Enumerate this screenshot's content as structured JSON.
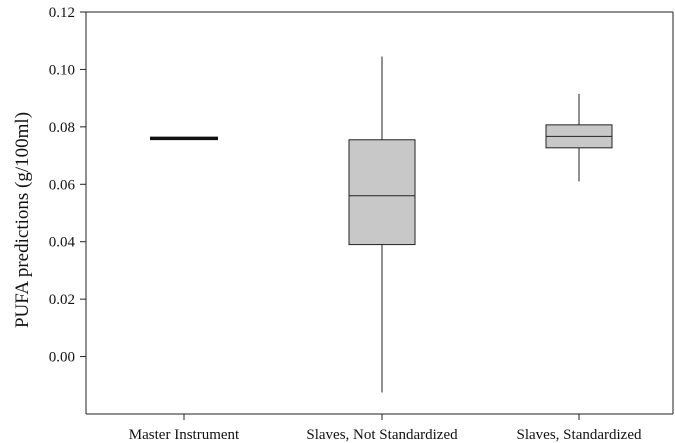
{
  "chart_data": {
    "type": "box",
    "ylabel": "PUFA predictions (g/100ml)",
    "xlabel": "",
    "ylim": [
      -0.02,
      0.12
    ],
    "yticks": [
      0.0,
      0.02,
      0.04,
      0.06,
      0.08,
      0.1,
      0.12
    ],
    "ytick_labels": [
      "0.00",
      "0.02",
      "0.04",
      "0.06",
      "0.08",
      "0.10",
      "0.12"
    ],
    "grid": false,
    "categories": [
      "Master Instrument",
      "Slaves, Not Standardized",
      "Slaves, Standardized"
    ],
    "boxes": [
      {
        "category": "Master Instrument",
        "min": 0.076,
        "q1": 0.076,
        "median": 0.076,
        "q3": 0.076,
        "max": 0.076
      },
      {
        "category": "Slaves, Not Standardized",
        "min": -0.0125,
        "q1": 0.039,
        "median": 0.056,
        "q3": 0.0755,
        "max": 0.1045
      },
      {
        "category": "Slaves, Standardized",
        "min": 0.061,
        "q1": 0.0727,
        "median": 0.0767,
        "q3": 0.0807,
        "max": 0.0915
      }
    ],
    "colors": {
      "box_fill": "#c8c8c8",
      "stroke": "#222222",
      "background": "#ffffff"
    }
  }
}
